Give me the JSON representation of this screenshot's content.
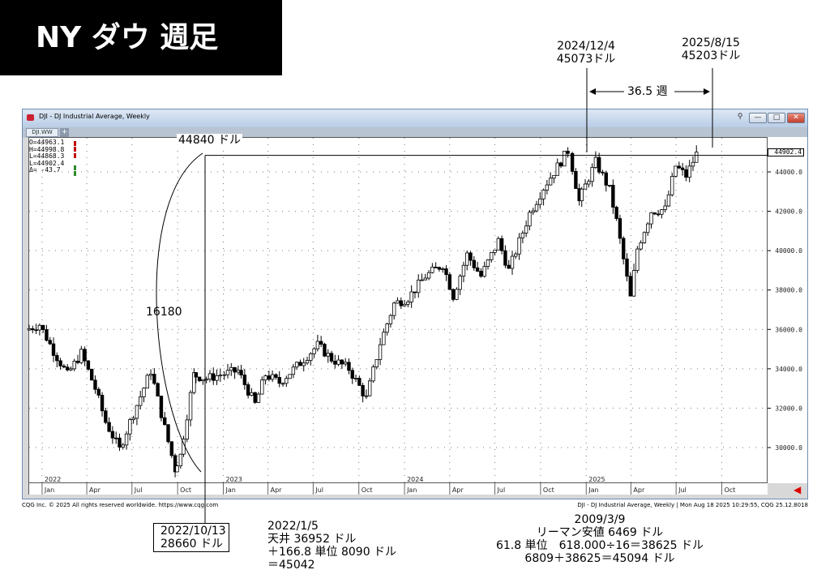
{
  "banner": {
    "title": "NY ダウ 週足"
  },
  "window": {
    "title": "DJI - DJ Industrial Average, Weekly",
    "tab_label": "DJI.WW",
    "tab_add": "+",
    "minimize": "—",
    "maximize": "□",
    "close": "✕"
  },
  "ohlc": {
    "open": "O=44963.1",
    "high": "H=44998.8",
    "low": "L=44868.3",
    "last": "L=44902.4",
    "change": "Δ=   -43.7"
  },
  "last_price": "44902.4",
  "y_ticks": [
    "44000.0",
    "42000.0",
    "40000.0",
    "38000.0",
    "36000.0",
    "34000.0",
    "32000.0",
    "30000.0"
  ],
  "years": [
    "2022",
    "2023",
    "2024",
    "2025"
  ],
  "months": [
    "Jan",
    "Apr",
    "Jul",
    "Oct",
    "Jan",
    "Apr",
    "Jul",
    "Oct",
    "Jan",
    "Apr",
    "Jul",
    "Oct",
    "Jan",
    "Apr",
    "Jul",
    "Oct"
  ],
  "footer": {
    "left": "CQG Inc. © 2025 All rights reserved worldwide. https://www.cqg.com",
    "right": "DJI - DJ Industrial Average, Weekly | Mon Aug 18 2025 10:29:55, CQG 25.12.8018"
  },
  "annotations": {
    "level_44840": "44840 ドル",
    "span_16180": "16180",
    "peak1_date": "2024/12/4",
    "peak1_price": "45073ドル",
    "peak2_date": "2025/8/15",
    "peak2_price": "45203ドル",
    "interval": "36.5 週",
    "low_date": "2022/10/13",
    "low_price": "28660 ドル",
    "calc1": [
      "2022/1/5",
      "天井 36952 ドル",
      "＋166.8 単位 8090 ドル",
      "＝45042"
    ],
    "calc2": [
      "2009/3/9",
      "リーマン安値 6469 ドル",
      "61.8 単位　618.000÷16＝38625 ドル",
      "6809＋38625＝45094 ドル"
    ]
  },
  "colors": {
    "up": "#ffffff",
    "down": "#000000",
    "accent_red": "#d00000",
    "window_border": "#6d8fb5"
  },
  "chart_data": {
    "type": "candlestick",
    "title": "DJI - DJ Industrial Average, Weekly",
    "xlabel": "",
    "ylabel": "",
    "ylim": [
      28660,
      45600
    ],
    "x_range": [
      "2021-12-06",
      "2025-12-29"
    ],
    "grid": true,
    "weekly_close": [
      [
        "2021-12-06",
        35970
      ],
      [
        "2022-01-03",
        36250
      ],
      [
        "2022-01-31",
        34900
      ],
      [
        "2022-02-28",
        33700
      ],
      [
        "2022-03-28",
        34800
      ],
      [
        "2022-04-25",
        33000
      ],
      [
        "2022-05-16",
        31300
      ],
      [
        "2022-06-13",
        29900
      ],
      [
        "2022-07-04",
        31300
      ],
      [
        "2022-08-15",
        33900
      ],
      [
        "2022-09-12",
        31000
      ],
      [
        "2022-09-30",
        28900
      ],
      [
        "2022-10-13",
        29600
      ],
      [
        "2022-11-07",
        33700
      ],
      [
        "2022-12-05",
        33500
      ],
      [
        "2023-01-03",
        33700
      ],
      [
        "2023-02-06",
        33900
      ],
      [
        "2023-03-13",
        32200
      ],
      [
        "2023-04-03",
        33700
      ],
      [
        "2023-05-01",
        33300
      ],
      [
        "2023-06-12",
        34300
      ],
      [
        "2023-07-17",
        35200
      ],
      [
        "2023-08-14",
        34500
      ],
      [
        "2023-09-18",
        34000
      ],
      [
        "2023-10-23",
        32500
      ],
      [
        "2023-11-20",
        35300
      ],
      [
        "2023-12-18",
        37300
      ],
      [
        "2024-01-15",
        37600
      ],
      [
        "2024-02-19",
        38700
      ],
      [
        "2024-03-25",
        39300
      ],
      [
        "2024-04-15",
        37700
      ],
      [
        "2024-05-13",
        39800
      ],
      [
        "2024-06-10",
        38700
      ],
      [
        "2024-07-15",
        40500
      ],
      [
        "2024-08-05",
        39000
      ],
      [
        "2024-09-16",
        41900
      ],
      [
        "2024-10-14",
        43200
      ],
      [
        "2024-12-04",
        45073
      ],
      [
        "2024-12-23",
        42500
      ],
      [
        "2025-01-27",
        44500
      ],
      [
        "2025-02-24",
        43100
      ],
      [
        "2025-03-10",
        41500
      ],
      [
        "2025-04-07",
        37600
      ],
      [
        "2025-04-21",
        40100
      ],
      [
        "2025-05-19",
        42000
      ],
      [
        "2025-06-16",
        42100
      ],
      [
        "2025-07-07",
        44300
      ],
      [
        "2025-07-28",
        43800
      ],
      [
        "2025-08-15",
        44902
      ]
    ],
    "annotations": [
      {
        "label": "44840 ドル",
        "kind": "horizontal-level",
        "y": 44840
      },
      {
        "label": "16180",
        "kind": "rise-from-low"
      },
      {
        "label": "2024/12/4 45073ドル",
        "date": "2024-12-04",
        "y": 45073
      },
      {
        "label": "2025/8/15 45203ドル",
        "date": "2025-08-15",
        "y": 45203
      },
      {
        "label": "36.5 週",
        "kind": "interval"
      },
      {
        "label": "2022/10/13 28660 ドル",
        "date": "2022-10-13",
        "y": 28660
      }
    ]
  }
}
